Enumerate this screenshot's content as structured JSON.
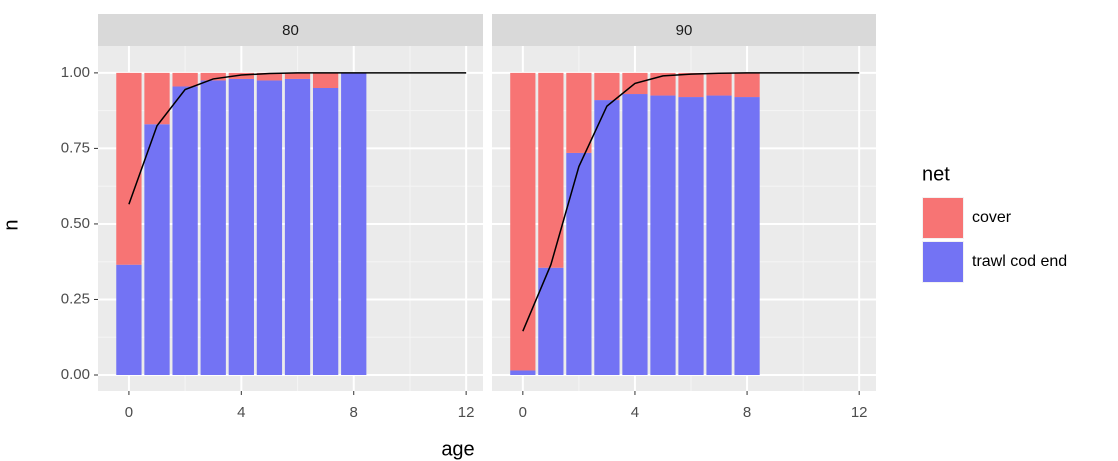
{
  "chart_data": {
    "type": "bar",
    "x_label": "age",
    "y_label": "n",
    "legend_title": "net",
    "legend_position": "right",
    "grid": true,
    "stacked": true,
    "xlim": [
      -1.1,
      12.6
    ],
    "ylim": [
      -0.053,
      1.089
    ],
    "xticks": [
      0,
      4,
      8,
      12
    ],
    "yticks": [
      {
        "value": 0,
        "label": "0.00"
      },
      {
        "value": 0.25,
        "label": "0.25"
      },
      {
        "value": 0.5,
        "label": "0.50"
      },
      {
        "value": 0.75,
        "label": "0.75"
      },
      {
        "value": 1,
        "label": "1.00"
      }
    ],
    "series_names": [
      "cover",
      "trawl cod end"
    ],
    "series_colors": [
      "#f77474",
      "#7373f4"
    ],
    "line_color": "#000000",
    "facets": [
      {
        "title": "80",
        "x": [
          0,
          1,
          2,
          3,
          4,
          5,
          6,
          7,
          8
        ],
        "series": [
          {
            "values": [
              0.635,
              0.17,
              0.045,
              0.025,
              0.02,
              0.025,
              0.02,
              0.05,
              0
            ]
          },
          {
            "values": [
              0.365,
              0.83,
              0.955,
              0.975,
              0.98,
              0.975,
              0.98,
              0.95,
              1.0
            ]
          }
        ],
        "curve": {
          "x": [
            0,
            1,
            2,
            3,
            4,
            5,
            6,
            7,
            8,
            9,
            10,
            11,
            12
          ],
          "y": [
            0.565,
            0.825,
            0.945,
            0.98,
            0.993,
            0.998,
            1,
            1,
            1,
            1,
            1,
            1,
            1
          ]
        }
      },
      {
        "title": "90",
        "x": [
          0,
          1,
          2,
          3,
          4,
          5,
          6,
          7,
          8
        ],
        "series": [
          {
            "values": [
              0.985,
              0.645,
              0.265,
              0.09,
              0.07,
              0.075,
              0.08,
              0.075,
              0.08
            ]
          },
          {
            "values": [
              0.015,
              0.355,
              0.735,
              0.91,
              0.93,
              0.925,
              0.92,
              0.925,
              0.92
            ]
          }
        ],
        "curve": {
          "x": [
            0,
            1,
            2,
            3,
            4,
            5,
            6,
            7,
            8,
            9,
            10,
            11,
            12
          ],
          "y": [
            0.145,
            0.365,
            0.69,
            0.89,
            0.965,
            0.99,
            0.996,
            0.999,
            1,
            1,
            1,
            1,
            1
          ]
        }
      }
    ]
  }
}
